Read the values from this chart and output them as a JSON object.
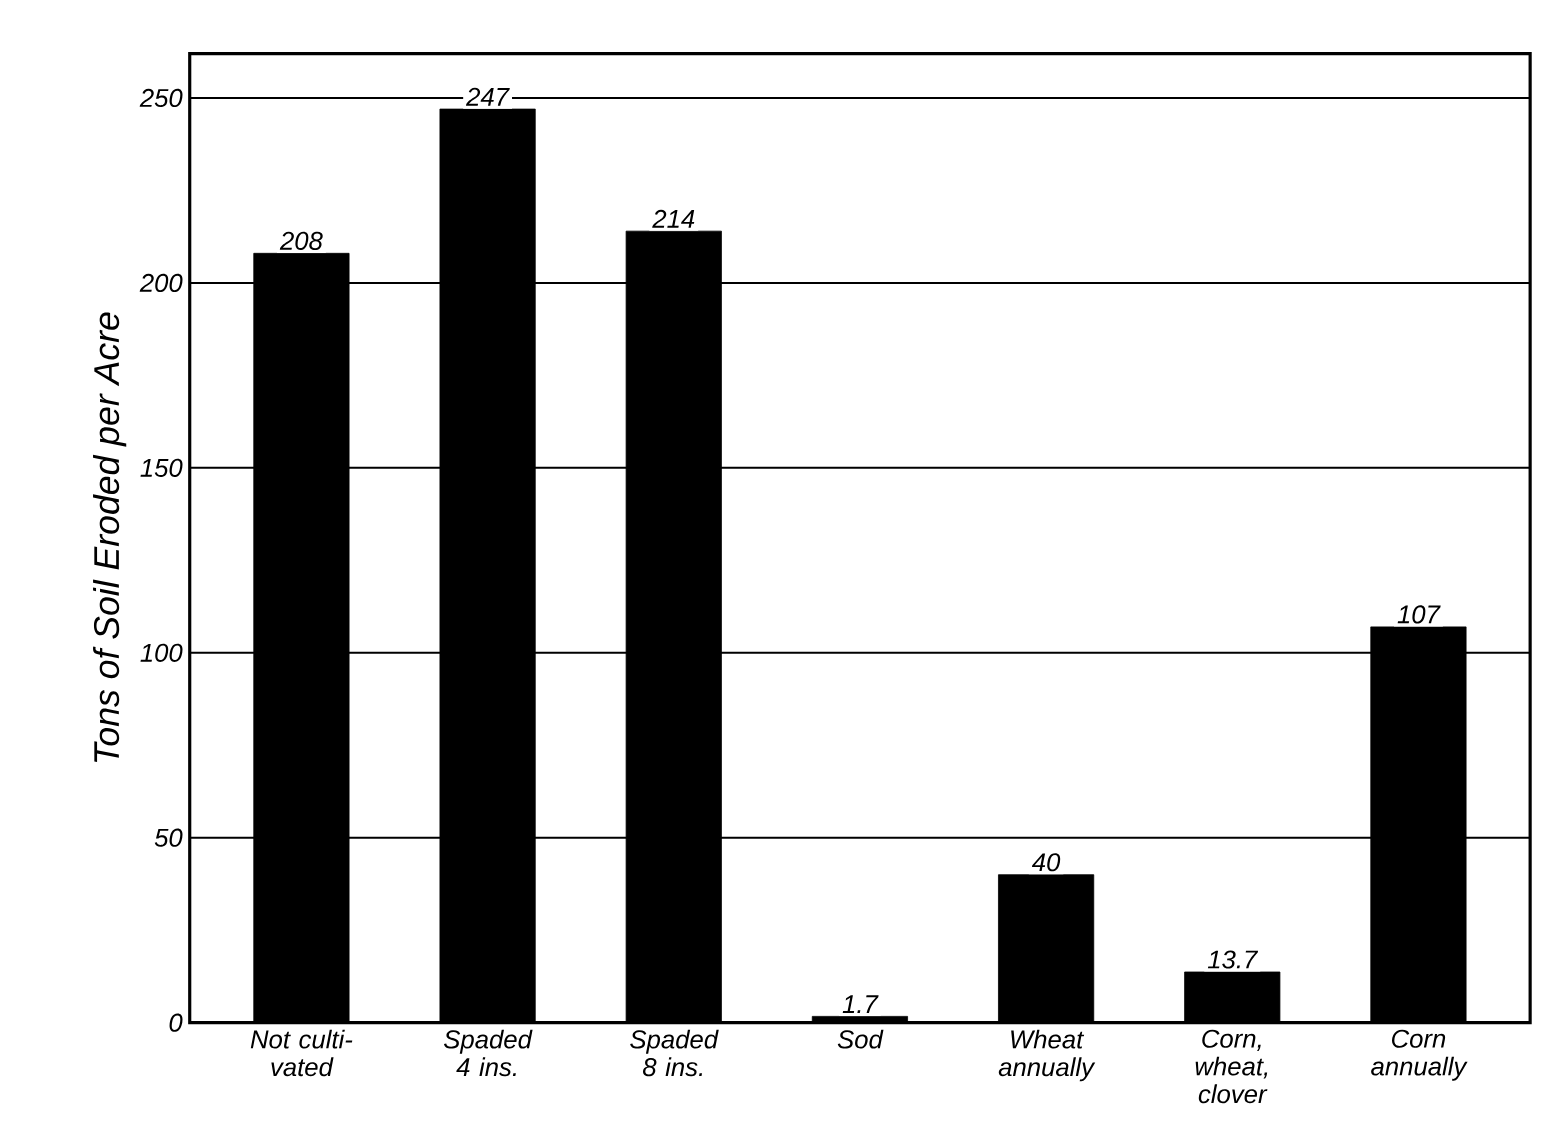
{
  "chart_data": {
    "type": "bar",
    "ylabel": "Tons of Soil Eroded per Acre",
    "categories": [
      "Not culti- vated",
      "Spaded 4 ins.",
      "Spaded 8 ins.",
      "Sod",
      "Wheat annually",
      "Corn, wheat, clover",
      "Corn annually"
    ],
    "values": [
      208,
      247,
      214,
      1.7,
      40,
      13.7,
      107
    ],
    "color": "#000000",
    "ylim": [
      0,
      262
    ],
    "yticks": [
      0,
      50,
      100,
      150,
      200,
      250
    ],
    "grid": "y",
    "data_labels": true
  }
}
